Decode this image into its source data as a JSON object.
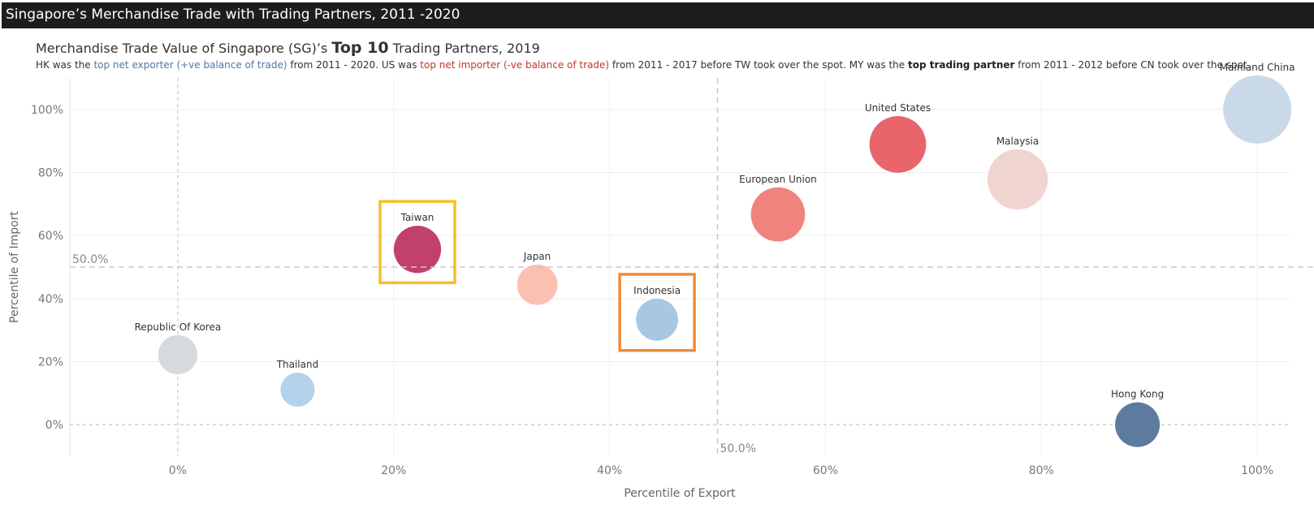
{
  "header": {
    "title": "Singapore’s Merchandise Trade with Trading Partners, 2011 -2020"
  },
  "subtitle": {
    "prefix": "Merchandise Trade Value of Singapore (SG)’s ",
    "strong": "Top 10",
    "suffix": " Trading Partners, 2019"
  },
  "description": {
    "p1": "HK was the ",
    "p2": "top net exporter (+ve balance of trade)",
    "p3": " from 2011 - 2020. US was ",
    "p4": "top net importer (-ve balance of trade)",
    "p5": " from 2011 - 2017 before TW took over the spot. MY was the ",
    "p6": "top trading partner",
    "p7": " from 2011 - 2012 before CN took over the spot."
  },
  "chart_data": {
    "type": "scatter",
    "xlabel": "Percentile of Export",
    "ylabel": "Percentile of Import",
    "xlim": [
      -0.1,
      1.03
    ],
    "ylim": [
      -0.1,
      1.1
    ],
    "x_ticks": [
      0,
      0.2,
      0.4,
      0.6,
      0.8,
      1.0
    ],
    "x_tick_labels": [
      "0%",
      "20%",
      "40%",
      "60%",
      "80%",
      "100%"
    ],
    "y_ticks": [
      0,
      0.2,
      0.4,
      0.6,
      0.8,
      1.0
    ],
    "y_tick_labels": [
      "0%",
      "20%",
      "40%",
      "60%",
      "80%",
      "100%"
    ],
    "ref_lines": [
      {
        "axis": "x",
        "value": 0.5,
        "label": "50.0%"
      },
      {
        "axis": "y",
        "value": 0.5,
        "label": "50.0%"
      }
    ],
    "points": [
      {
        "name": "Mainland China",
        "x": 1.0,
        "y": 1.0,
        "size": 1.0,
        "color": "#c9d9e8"
      },
      {
        "name": "United States",
        "x": 0.667,
        "y": 0.889,
        "size": 0.69,
        "color": "#e8666b"
      },
      {
        "name": "Malaysia",
        "x": 0.778,
        "y": 0.778,
        "size": 0.78,
        "color": "#f0d4d0"
      },
      {
        "name": "European Union",
        "x": 0.556,
        "y": 0.667,
        "size": 0.63,
        "color": "#f0847d"
      },
      {
        "name": "Taiwan",
        "x": 0.222,
        "y": 0.556,
        "size": 0.48,
        "color": "#c1416a"
      },
      {
        "name": "Japan",
        "x": 0.333,
        "y": 0.444,
        "size": 0.35,
        "color": "#fcc0b0"
      },
      {
        "name": "Indonesia",
        "x": 0.444,
        "y": 0.333,
        "size": 0.38,
        "color": "#a8c8e2"
      },
      {
        "name": "Republic Of Korea",
        "x": 0.0,
        "y": 0.222,
        "size": 0.33,
        "color": "#d5dadf"
      },
      {
        "name": "Thailand",
        "x": 0.111,
        "y": 0.111,
        "size": 0.25,
        "color": "#b4d2ea"
      },
      {
        "name": "Hong Kong",
        "x": 0.889,
        "y": 0.0,
        "size": 0.43,
        "color": "#5d7b9e"
      }
    ],
    "highlights": [
      {
        "target": "Taiwan",
        "color": "#f5c122"
      },
      {
        "target": "Indonesia",
        "color": "#f08c34"
      }
    ]
  }
}
